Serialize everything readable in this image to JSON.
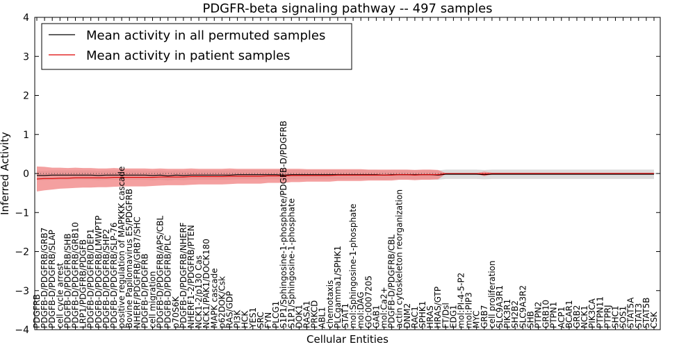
{
  "chart_data": {
    "type": "line",
    "title": "PDGFR-beta signaling pathway -- 497 samples",
    "xlabel": "Cellular Entities",
    "ylabel": "Inferred Activity",
    "ylim": [
      -4,
      4
    ],
    "yticks": [
      -4,
      -3,
      -2,
      -1,
      0,
      1,
      2,
      3,
      4
    ],
    "grid": false,
    "legend_position": "top-left",
    "categories": [
      "PDGFRB",
      "PDGFB-D/PDGFRB/GRB7",
      "PDGFB-D/PDGFRB/SLAP",
      "cell cycle arrest",
      "PDGFB-D/PDGFRB/SHB",
      "PDGFB-D/PDGFRB/GRB10",
      "LRP1/PDGFRB/PDGFB",
      "PDGFB-D/PDGFRB/DEP1",
      "PDGFB-D/PDGFRB/LMWPTP",
      "PDGFB-D/PDGFRB/SHP2",
      "PDGFB-D/PDGFRB/SLP-76",
      "positive regulation of MAPKKK cascade",
      "Bovine Papilomavirus E5/PDGFRB",
      "NHERF/PDGFRB/GRB7/SHC",
      "PDGFB-D/PDGFRB",
      "cell migration",
      "PDGFB-D/PDGFRB/APS/CBL",
      "PDGFB-D/PDGFRB/PLC",
      "p70S6K",
      "PDGFB-D/PDGFRB/NHERF",
      "NHERF1-2/PDGFRB/PTEN",
      "NCK1-2/p130 Cas",
      "NCK1/PAK1/DOCK180",
      "MAPK cascade",
      "p62DOK/Csk",
      "RAS/GDP",
      "PI3K",
      "HCK",
      "YES1",
      "SRC",
      "FYN",
      "PLCG1",
      "S1P1/Sphingosine-1-phosphate/PDGFB-D/PDGFRB",
      "S1P1/Sphingosine-1-phosphate",
      "DOK1",
      "RASA1",
      "PRKCD",
      "ABL1",
      "chemotaxis",
      "PLCgamma1/SPHK1",
      "STAT1",
      "mol:Sphingosine-1-phosphate",
      "mol:DAG",
      "GO:0007205",
      "GAB1",
      "mol:Ca2+",
      "PDGFB-D/PDGFRB/CBL",
      "actin cytoskeleton reorganization",
      "DNM2",
      "RAC1",
      "SPHK1",
      "HRAS",
      "HRAS/GTP",
      "FT/Dsl",
      "EDG1",
      "mol:PI-4-5-P2",
      "mol:PIP3",
      "MYC",
      "GRB7",
      "cell proliferation",
      "SLC9A3R1",
      "PIK3R1",
      "SH2B2",
      "SLC9A3R2",
      "SHB",
      "PTPN2",
      "GRB10",
      "PTPN1",
      "ACP1",
      "BCAR1",
      "GRB2",
      "NCK1",
      "PIK3CA",
      "PTPN11",
      "PTPRJ",
      "SHC1",
      "SOS1",
      "STAT5A",
      "STAT3",
      "STAT5B",
      "CSK"
    ],
    "series": [
      {
        "name": "Mean activity in all permuted samples",
        "color": "#000000",
        "values": [
          -0.05,
          -0.05,
          -0.04,
          -0.04,
          -0.04,
          -0.04,
          -0.04,
          -0.04,
          -0.05,
          -0.04,
          -0.04,
          -0.04,
          -0.04,
          -0.04,
          -0.04,
          -0.05,
          -0.04,
          -0.06,
          -0.04,
          -0.05,
          -0.04,
          -0.04,
          -0.04,
          -0.04,
          -0.04,
          -0.04,
          -0.03,
          -0.03,
          -0.03,
          -0.03,
          -0.03,
          -0.03,
          -0.04,
          -0.03,
          -0.03,
          -0.03,
          -0.03,
          -0.03,
          -0.03,
          -0.03,
          -0.03,
          -0.03,
          -0.03,
          -0.03,
          -0.03,
          -0.04,
          -0.03,
          -0.03,
          -0.03,
          -0.03,
          -0.03,
          -0.03,
          -0.04,
          -0.02,
          -0.02,
          -0.02,
          -0.02,
          -0.02,
          -0.03,
          -0.02,
          -0.02,
          -0.02,
          -0.02,
          -0.02,
          -0.02,
          -0.02,
          -0.02,
          -0.02,
          -0.02,
          -0.02,
          -0.02,
          -0.02,
          -0.02,
          -0.02,
          -0.02,
          -0.02,
          -0.02,
          -0.02,
          -0.02,
          -0.02,
          -0.02
        ],
        "band": [
          0.12,
          0.12,
          0.12,
          0.12,
          0.12,
          0.12,
          0.12,
          0.12,
          0.12,
          0.12,
          0.12,
          0.12,
          0.12,
          0.12,
          0.12,
          0.12,
          0.12,
          0.12,
          0.12,
          0.12,
          0.12,
          0.12,
          0.12,
          0.12,
          0.12,
          0.12,
          0.12,
          0.12,
          0.12,
          0.12,
          0.12,
          0.12,
          0.12,
          0.12,
          0.12,
          0.12,
          0.12,
          0.12,
          0.12,
          0.12,
          0.12,
          0.12,
          0.12,
          0.12,
          0.12,
          0.12,
          0.12,
          0.12,
          0.12,
          0.12,
          0.12,
          0.12,
          0.12,
          0.12,
          0.12,
          0.12,
          0.12,
          0.12,
          0.12,
          0.12,
          0.12,
          0.12,
          0.12,
          0.12,
          0.12,
          0.12,
          0.12,
          0.12,
          0.12,
          0.12,
          0.12,
          0.12,
          0.12,
          0.12,
          0.12,
          0.12,
          0.12,
          0.12,
          0.12,
          0.12,
          0.12
        ],
        "band_color": "#cccccc"
      },
      {
        "name": "Mean activity in patient samples",
        "color": "#dd0000",
        "values": [
          -0.14,
          -0.13,
          -0.13,
          -0.12,
          -0.12,
          -0.11,
          -0.11,
          -0.11,
          -0.11,
          -0.11,
          -0.1,
          -0.1,
          -0.1,
          -0.1,
          -0.1,
          -0.1,
          -0.09,
          -0.09,
          -0.09,
          -0.09,
          -0.08,
          -0.08,
          -0.08,
          -0.08,
          -0.08,
          -0.07,
          -0.07,
          -0.07,
          -0.07,
          -0.07,
          -0.06,
          -0.06,
          -0.06,
          -0.05,
          -0.05,
          -0.05,
          -0.05,
          -0.05,
          -0.05,
          -0.04,
          -0.04,
          -0.04,
          -0.04,
          -0.04,
          -0.04,
          -0.04,
          -0.04,
          -0.03,
          -0.03,
          -0.04,
          -0.03,
          -0.03,
          -0.03,
          0.0,
          0.0,
          0.0,
          0.0,
          0.0,
          -0.01,
          0.0,
          0.0,
          0.0,
          0.0,
          0.0,
          0.0,
          0.0,
          0.0,
          0.0,
          0.0,
          0.0,
          0.0,
          0.0,
          0.0,
          0.0,
          0.0,
          0.0,
          0.0,
          0.0,
          0.0,
          0.0,
          0.0
        ],
        "band": [
          0.32,
          0.3,
          0.28,
          0.27,
          0.26,
          0.26,
          0.25,
          0.25,
          0.24,
          0.24,
          0.24,
          0.23,
          0.23,
          0.23,
          0.23,
          0.22,
          0.22,
          0.21,
          0.21,
          0.21,
          0.21,
          0.2,
          0.2,
          0.2,
          0.2,
          0.2,
          0.19,
          0.19,
          0.19,
          0.19,
          0.18,
          0.18,
          0.18,
          0.17,
          0.17,
          0.16,
          0.16,
          0.16,
          0.16,
          0.15,
          0.15,
          0.15,
          0.15,
          0.14,
          0.14,
          0.14,
          0.14,
          0.13,
          0.13,
          0.13,
          0.13,
          0.13,
          0.12,
          0.01,
          0.01,
          0.01,
          0.01,
          0.01,
          0.06,
          0.02,
          0.02,
          0.02,
          0.02,
          0.02,
          0.02,
          0.02,
          0.02,
          0.02,
          0.02,
          0.02,
          0.02,
          0.02,
          0.02,
          0.02,
          0.02,
          0.02,
          0.02,
          0.02,
          0.02,
          0.02,
          0.02
        ],
        "band_color": "#f08080"
      }
    ]
  }
}
